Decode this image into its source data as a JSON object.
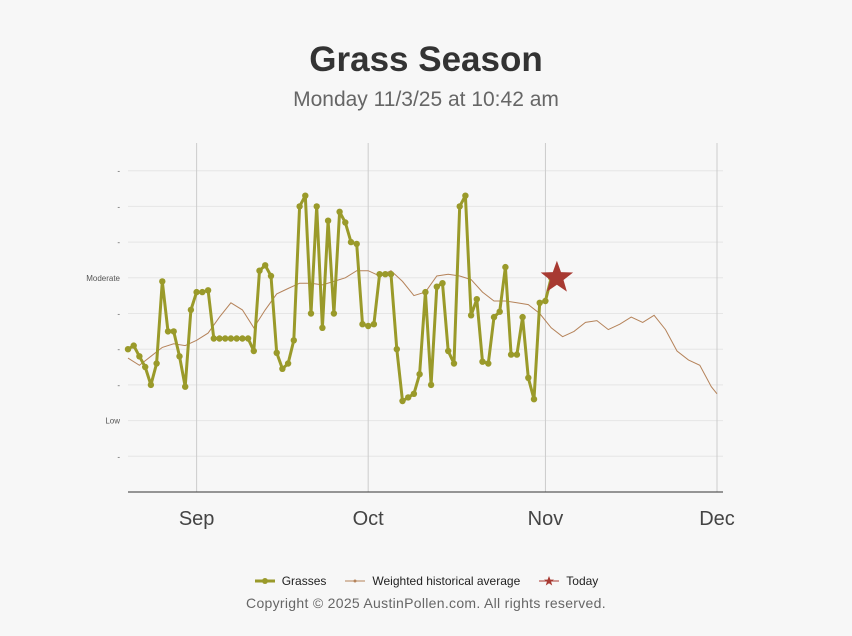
{
  "header": {
    "title": "Grass Season",
    "subtitle": "Monday 11/3/25 at 10:42 am"
  },
  "legend": {
    "grasses": "Grasses",
    "historical": "Weighted historical average",
    "today": "Today"
  },
  "footer": {
    "copyright": "Copyright © 2025 AustinPollen.com.  All rights reserved."
  },
  "colors": {
    "grasses": "#9a9a2a",
    "historical": "#b5835a",
    "today": "#a83a32",
    "grid": "#cccccc"
  },
  "chart_data": {
    "type": "line",
    "title": "Grass Season",
    "subtitle": "Monday 11/3/25 at 10:42 am",
    "x_axis": {
      "type": "date",
      "range": [
        "2025-08-20",
        "2025-12-01"
      ],
      "ticks": [
        {
          "date": "2025-09-01",
          "label": "Sep"
        },
        {
          "date": "2025-10-01",
          "label": "Oct"
        },
        {
          "date": "2025-11-01",
          "label": "Nov"
        },
        {
          "date": "2025-12-01",
          "label": "Dec"
        }
      ]
    },
    "y_axis": {
      "range": [
        0,
        9
      ],
      "ticks": [
        {
          "value": 1,
          "label": "-"
        },
        {
          "value": 2,
          "label": "Low"
        },
        {
          "value": 3,
          "label": "-"
        },
        {
          "value": 4,
          "label": "-"
        },
        {
          "value": 5,
          "label": "-"
        },
        {
          "value": 6,
          "label": "Moderate"
        },
        {
          "value": 7,
          "label": "-"
        },
        {
          "value": 8,
          "label": "-"
        },
        {
          "value": 9,
          "label": "-"
        }
      ],
      "grid": true
    },
    "legend_position": "bottom",
    "series": [
      {
        "name": "Grasses",
        "style": "line-with-markers",
        "points": [
          [
            "2025-08-20",
            4.0
          ],
          [
            "2025-08-21",
            4.1
          ],
          [
            "2025-08-22",
            3.8
          ],
          [
            "2025-08-23",
            3.5
          ],
          [
            "2025-08-24",
            3.0
          ],
          [
            "2025-08-25",
            3.6
          ],
          [
            "2025-08-26",
            5.9
          ],
          [
            "2025-08-27",
            4.5
          ],
          [
            "2025-08-28",
            4.5
          ],
          [
            "2025-08-29",
            3.8
          ],
          [
            "2025-08-30",
            2.95
          ],
          [
            "2025-08-31",
            5.1
          ],
          [
            "2025-09-01",
            5.6
          ],
          [
            "2025-09-02",
            5.6
          ],
          [
            "2025-09-03",
            5.65
          ],
          [
            "2025-09-04",
            4.3
          ],
          [
            "2025-09-05",
            4.3
          ],
          [
            "2025-09-06",
            4.3
          ],
          [
            "2025-09-07",
            4.3
          ],
          [
            "2025-09-08",
            4.3
          ],
          [
            "2025-09-09",
            4.3
          ],
          [
            "2025-09-10",
            4.3
          ],
          [
            "2025-09-11",
            3.95
          ],
          [
            "2025-09-12",
            6.2
          ],
          [
            "2025-09-13",
            6.35
          ],
          [
            "2025-09-14",
            6.05
          ],
          [
            "2025-09-15",
            3.9
          ],
          [
            "2025-09-16",
            3.45
          ],
          [
            "2025-09-17",
            3.6
          ],
          [
            "2025-09-18",
            4.25
          ],
          [
            "2025-09-19",
            8.0
          ],
          [
            "2025-09-20",
            8.3
          ],
          [
            "2025-09-21",
            5.0
          ],
          [
            "2025-09-22",
            8.0
          ],
          [
            "2025-09-23",
            4.6
          ],
          [
            "2025-09-24",
            7.6
          ],
          [
            "2025-09-25",
            5.0
          ],
          [
            "2025-09-26",
            7.85
          ],
          [
            "2025-09-27",
            7.55
          ],
          [
            "2025-09-28",
            7.0
          ],
          [
            "2025-09-29",
            6.95
          ],
          [
            "2025-09-30",
            4.7
          ],
          [
            "2025-10-01",
            4.65
          ],
          [
            "2025-10-02",
            4.7
          ],
          [
            "2025-10-03",
            6.1
          ],
          [
            "2025-10-04",
            6.1
          ],
          [
            "2025-10-05",
            6.1
          ],
          [
            "2025-10-06",
            4.0
          ],
          [
            "2025-10-07",
            2.55
          ],
          [
            "2025-10-08",
            2.65
          ],
          [
            "2025-10-09",
            2.75
          ],
          [
            "2025-10-10",
            3.3
          ],
          [
            "2025-10-11",
            5.6
          ],
          [
            "2025-10-12",
            3.0
          ],
          [
            "2025-10-13",
            5.75
          ],
          [
            "2025-10-14",
            5.85
          ],
          [
            "2025-10-15",
            3.95
          ],
          [
            "2025-10-16",
            3.6
          ],
          [
            "2025-10-17",
            8.0
          ],
          [
            "2025-10-18",
            8.3
          ],
          [
            "2025-10-19",
            4.95
          ],
          [
            "2025-10-20",
            5.4
          ],
          [
            "2025-10-21",
            3.65
          ],
          [
            "2025-10-22",
            3.6
          ],
          [
            "2025-10-23",
            4.9
          ],
          [
            "2025-10-24",
            5.05
          ],
          [
            "2025-10-25",
            6.3
          ],
          [
            "2025-10-26",
            3.85
          ],
          [
            "2025-10-27",
            3.85
          ],
          [
            "2025-10-28",
            4.9
          ],
          [
            "2025-10-29",
            3.2
          ],
          [
            "2025-10-30",
            2.6
          ],
          [
            "2025-10-31",
            5.3
          ],
          [
            "2025-11-01",
            5.35
          ],
          [
            "2025-11-02",
            6.0
          ]
        ]
      },
      {
        "name": "Weighted historical average",
        "style": "line",
        "points": [
          [
            "2025-08-20",
            3.75
          ],
          [
            "2025-08-22",
            3.55
          ],
          [
            "2025-08-24",
            3.8
          ],
          [
            "2025-08-26",
            4.05
          ],
          [
            "2025-08-28",
            4.15
          ],
          [
            "2025-08-30",
            4.1
          ],
          [
            "2025-09-01",
            4.25
          ],
          [
            "2025-09-03",
            4.45
          ],
          [
            "2025-09-05",
            4.9
          ],
          [
            "2025-09-07",
            5.3
          ],
          [
            "2025-09-09",
            5.1
          ],
          [
            "2025-09-11",
            4.6
          ],
          [
            "2025-09-13",
            5.1
          ],
          [
            "2025-09-15",
            5.55
          ],
          [
            "2025-09-17",
            5.7
          ],
          [
            "2025-09-19",
            5.85
          ],
          [
            "2025-09-21",
            5.85
          ],
          [
            "2025-09-23",
            5.8
          ],
          [
            "2025-09-25",
            5.9
          ],
          [
            "2025-09-27",
            6.0
          ],
          [
            "2025-09-29",
            6.2
          ],
          [
            "2025-10-01",
            6.2
          ],
          [
            "2025-10-03",
            6.05
          ],
          [
            "2025-10-05",
            6.2
          ],
          [
            "2025-10-07",
            5.9
          ],
          [
            "2025-10-09",
            5.5
          ],
          [
            "2025-10-11",
            5.6
          ],
          [
            "2025-10-13",
            6.05
          ],
          [
            "2025-10-15",
            6.1
          ],
          [
            "2025-10-17",
            6.05
          ],
          [
            "2025-10-19",
            5.95
          ],
          [
            "2025-10-21",
            5.6
          ],
          [
            "2025-10-23",
            5.35
          ],
          [
            "2025-10-25",
            5.35
          ],
          [
            "2025-10-27",
            5.3
          ],
          [
            "2025-10-29",
            5.25
          ],
          [
            "2025-10-31",
            5.0
          ],
          [
            "2025-11-02",
            4.6
          ],
          [
            "2025-11-04",
            4.35
          ],
          [
            "2025-11-06",
            4.5
          ],
          [
            "2025-11-08",
            4.75
          ],
          [
            "2025-11-10",
            4.8
          ],
          [
            "2025-11-12",
            4.55
          ],
          [
            "2025-11-14",
            4.7
          ],
          [
            "2025-11-16",
            4.9
          ],
          [
            "2025-11-18",
            4.75
          ],
          [
            "2025-11-20",
            4.95
          ],
          [
            "2025-11-22",
            4.55
          ],
          [
            "2025-11-24",
            3.95
          ],
          [
            "2025-11-26",
            3.7
          ],
          [
            "2025-11-28",
            3.55
          ],
          [
            "2025-11-30",
            2.95
          ],
          [
            "2025-12-01",
            2.75
          ]
        ]
      }
    ],
    "today": {
      "name": "Today",
      "date": "2025-11-03",
      "value": 6.0
    }
  }
}
